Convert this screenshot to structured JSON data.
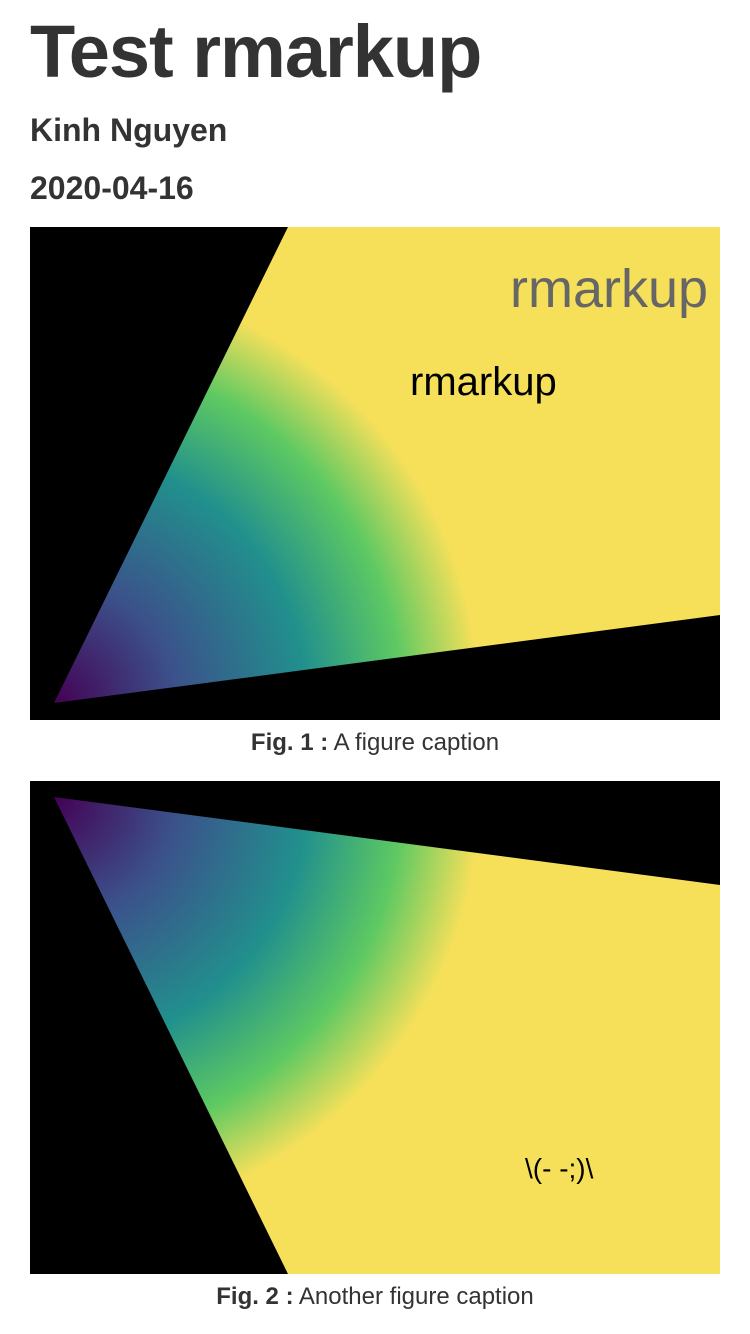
{
  "document": {
    "title": "Test rmarkup",
    "author": "Kinh Nguyen",
    "date": "2020-04-16"
  },
  "figures": [
    {
      "number_label": "Fig. 1 :",
      "caption": "A figure caption",
      "annotations": {
        "large_text": "rmarkup",
        "small_text": "rmarkup"
      },
      "colors": {
        "background": "#000000",
        "gradient": [
          "#440154",
          "#3b528b",
          "#21908d",
          "#5ec962",
          "#f6e05a"
        ]
      }
    },
    {
      "number_label": "Fig. 2 :",
      "caption": "Another figure caption",
      "annotations": {
        "small_text": "\\(- -;)\\"
      },
      "colors": {
        "background": "#000000",
        "gradient": [
          "#440154",
          "#3b528b",
          "#21908d",
          "#5ec962",
          "#f6e05a"
        ]
      }
    }
  ]
}
